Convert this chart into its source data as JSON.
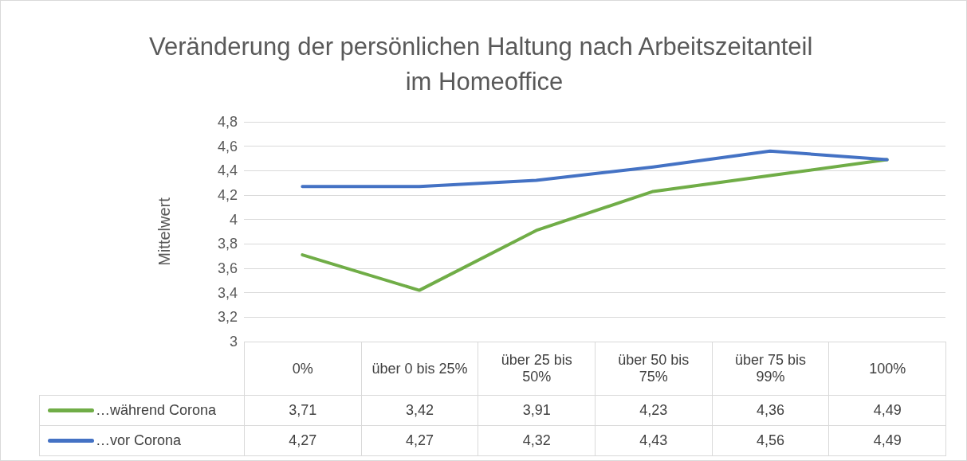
{
  "chart_data": {
    "type": "line",
    "title": "Veränderung der persönlichen Haltung nach Arbeitszeitanteil im Homeoffice",
    "ylabel": "Mittelwert",
    "categories": [
      "0%",
      "über 0 bis 25%",
      "über 25 bis 50%",
      "über 50 bis 75%",
      "über 75 bis 99%",
      "100%"
    ],
    "series": [
      {
        "name": "…während Corona",
        "color": "#70ad47",
        "values": [
          3.71,
          3.42,
          3.91,
          4.23,
          4.36,
          4.49
        ],
        "value_labels": [
          "3,71",
          "3,42",
          "3,91",
          "4,23",
          "4,36",
          "4,49"
        ]
      },
      {
        "name": "…vor Corona",
        "color": "#4472c4",
        "values": [
          4.27,
          4.27,
          4.32,
          4.43,
          4.56,
          4.49
        ],
        "value_labels": [
          "4,27",
          "4,27",
          "4,32",
          "4,43",
          "4,56",
          "4,49"
        ]
      }
    ],
    "ylim": [
      3,
      4.8
    ],
    "yticks": [
      3,
      {
        "value": 3.2,
        "label": "3,2"
      },
      {
        "value": 3.4,
        "label": "3,4"
      },
      {
        "value": 3.6,
        "label": "3,6"
      },
      {
        "value": 3.8,
        "label": "3,8"
      },
      4,
      {
        "value": 4.2,
        "label": "4,2"
      },
      {
        "value": 4.4,
        "label": "4,4"
      },
      {
        "value": 4.6,
        "label": "4,6"
      },
      {
        "value": 4.8,
        "label": "4,8"
      }
    ],
    "grid": "y",
    "legend": "bottom",
    "marker": "none",
    "line_style": "solid"
  }
}
